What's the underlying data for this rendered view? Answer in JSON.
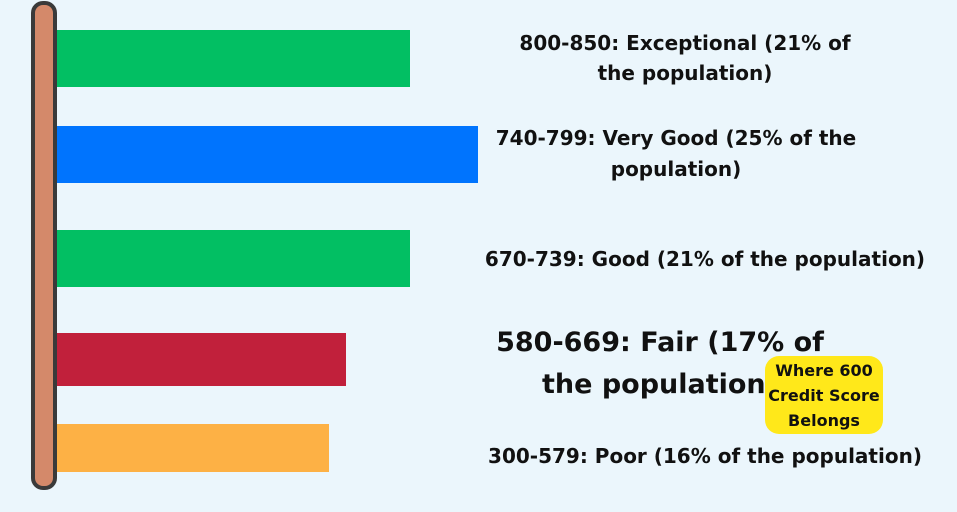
{
  "chart_data": {
    "type": "bar",
    "orientation": "horizontal",
    "categories": [
      "800-850: Exceptional (21% of the population)",
      "740-799: Very Good (25% of the population)",
      "670-739: Good (21% of the population)",
      "580-669: Fair (17% of the population)",
      "300-579: Poor (16% of the population)"
    ],
    "values": [
      21,
      25,
      21,
      17,
      16
    ],
    "colors": [
      "#02bf63",
      "#0074fe",
      "#02bf63",
      "#c1203b",
      "#fdb145"
    ],
    "annotation": "Where 600 Credit Score Belongs"
  }
}
